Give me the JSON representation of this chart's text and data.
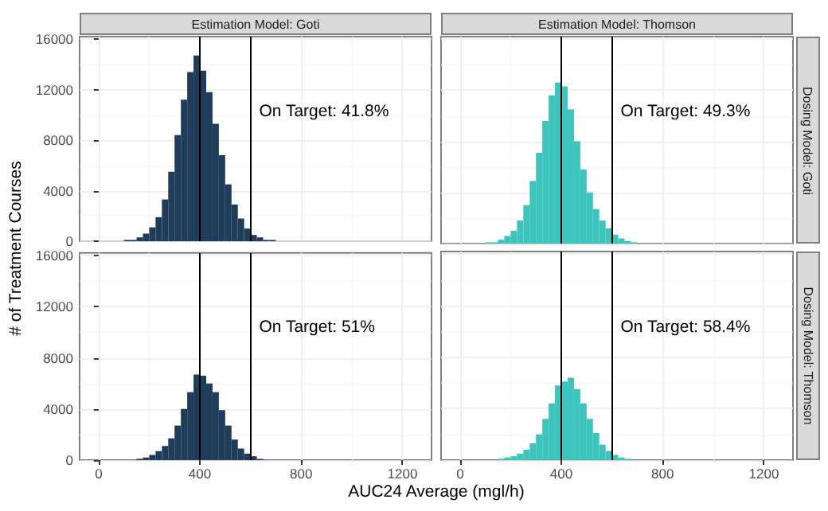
{
  "chart_data": [
    {
      "type": "histogram",
      "title": "Estimation Model: Goti",
      "ylabel": "# of Treatment Courses",
      "annotations": [
        "On Target: 41.8%"
      ],
      "color": "#1f3d5a",
      "tick_labels": "y",
      "bins": [
        100,
        125,
        150,
        175,
        200,
        225,
        250,
        275,
        300,
        325,
        350,
        375,
        400,
        425,
        450,
        475,
        500,
        525,
        550,
        575,
        600,
        625,
        650,
        675,
        700
      ],
      "values": [
        100,
        100,
        300,
        600,
        1100,
        1900,
        3300,
        5500,
        8400,
        11200,
        13400,
        14700,
        13500,
        11800,
        9300,
        6800,
        4500,
        2900,
        1800,
        1000,
        500,
        300,
        100,
        100
      ],
      "xlim": [
        -75,
        1315
      ],
      "xticks": [
        0,
        400,
        800,
        1200
      ],
      "ylim": [
        0,
        16200
      ],
      "yticks": [
        0,
        4000,
        8000,
        12000,
        16000
      ],
      "grid": true,
      "ref_lines": [
        {
          "axis": "x",
          "value": 400,
          "color": "#000000"
        },
        {
          "axis": "x",
          "value": 600,
          "color": "#000000"
        }
      ]
    },
    {
      "type": "histogram",
      "title": "Estimation Model: Thomson",
      "y2label": "Dosing Model: Goti",
      "annotations": [
        "On Target: 49.3%"
      ],
      "color": "#3cc4bd",
      "tick_labels": false,
      "bins": [
        100,
        125,
        150,
        175,
        200,
        225,
        250,
        275,
        300,
        325,
        350,
        375,
        400,
        425,
        450,
        475,
        500,
        525,
        550,
        575,
        600,
        625,
        650,
        675,
        700
      ],
      "values": [
        100,
        100,
        300,
        600,
        1000,
        1800,
        3000,
        4900,
        7100,
        9600,
        11600,
        12600,
        12300,
        10500,
        8000,
        5800,
        4000,
        2700,
        1800,
        1200,
        700,
        400,
        200,
        100
      ],
      "xlim": [
        -75,
        1315
      ],
      "xticks": [
        0,
        400,
        800,
        1200
      ],
      "ylim": [
        0,
        16200
      ],
      "yticks": [
        0,
        4000,
        8000,
        12000,
        16000
      ],
      "grid": true,
      "ref_lines": [
        {
          "axis": "x",
          "value": 400,
          "color": "#000000"
        },
        {
          "axis": "x",
          "value": 600,
          "color": "#000000"
        }
      ]
    },
    {
      "type": "histogram",
      "xlabel": "AUC24 Average (mgl/h)",
      "annotations": [
        "On Target: 51%"
      ],
      "color": "#1f3d5a",
      "bins": [
        100,
        125,
        150,
        175,
        200,
        225,
        250,
        275,
        300,
        325,
        350,
        375,
        400,
        425,
        450,
        475,
        500,
        525,
        550,
        575,
        600,
        625,
        650,
        675,
        700
      ],
      "values": [
        0,
        0,
        100,
        200,
        400,
        700,
        1100,
        1700,
        2700,
        4000,
        5300,
        6700,
        6600,
        6000,
        5300,
        3900,
        2700,
        1600,
        900,
        500,
        300,
        100,
        0,
        0
      ],
      "xlim": [
        -75,
        1315
      ],
      "xticks": [
        0,
        400,
        800,
        1200
      ],
      "ylim": [
        0,
        16200
      ],
      "yticks": [
        0,
        4000,
        8000,
        12000,
        16000
      ],
      "grid": true,
      "ref_lines": [
        {
          "axis": "x",
          "value": 400,
          "color": "#000000"
        },
        {
          "axis": "x",
          "value": 600,
          "color": "#000000"
        }
      ]
    },
    {
      "type": "histogram",
      "y2label": "Dosing Model: Thomson",
      "annotations": [
        "On Target: 58.4%"
      ],
      "color": "#3cc4bd",
      "tick_labels": "x",
      "bins": [
        100,
        125,
        150,
        175,
        200,
        225,
        250,
        275,
        300,
        325,
        350,
        375,
        400,
        425,
        450,
        475,
        500,
        525,
        550,
        575,
        600,
        625,
        650,
        675,
        700
      ],
      "values": [
        0,
        0,
        100,
        200,
        300,
        500,
        800,
        1300,
        2000,
        3200,
        4400,
        5800,
        6100,
        6400,
        5500,
        4400,
        3200,
        2100,
        1200,
        700,
        400,
        200,
        100,
        0
      ],
      "xlim": [
        -75,
        1315
      ],
      "xticks": [
        0,
        400,
        800,
        1200
      ],
      "ylim": [
        0,
        16200
      ],
      "yticks": [
        0,
        4000,
        8000,
        12000,
        16000
      ],
      "grid": true,
      "ref_lines": [
        {
          "axis": "x",
          "value": 400,
          "color": "#000000"
        },
        {
          "axis": "x",
          "value": 600,
          "color": "#000000"
        }
      ]
    }
  ]
}
